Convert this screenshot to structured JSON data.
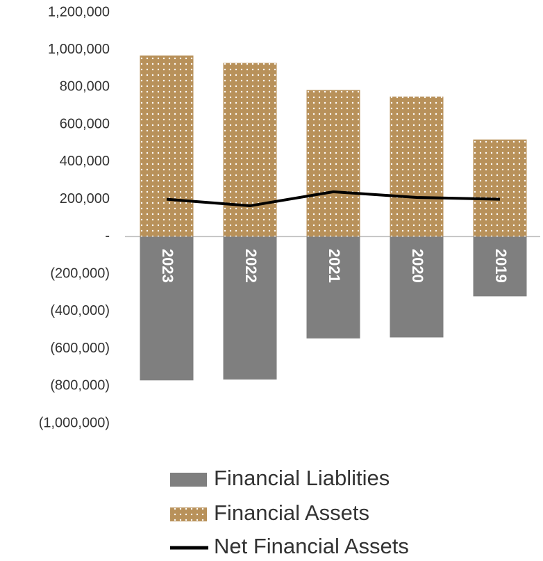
{
  "chart_data": {
    "type": "bar",
    "categories": [
      "2023",
      "2022",
      "2021",
      "2020",
      "2019"
    ],
    "series": [
      {
        "name": "Financial Liablities",
        "type": "bar",
        "color": "#7f7f7f",
        "values": [
          -770000,
          -765000,
          -545000,
          -540000,
          -320000
        ]
      },
      {
        "name": "Financial Assets",
        "type": "bar",
        "color": "#b8915a",
        "pattern": "dotted",
        "values": [
          970000,
          930000,
          785000,
          750000,
          520000
        ]
      },
      {
        "name": "Net Financial Assets",
        "type": "line",
        "color": "#000000",
        "values": [
          200000,
          165000,
          240000,
          210000,
          200000
        ]
      }
    ],
    "ylim": [
      -1000000,
      1200000
    ],
    "yticks": [
      {
        "value": -1000000,
        "label": "(1,000,000)"
      },
      {
        "value": -800000,
        "label": "(800,000)"
      },
      {
        "value": -600000,
        "label": "(600,000)"
      },
      {
        "value": -400000,
        "label": "(400,000)"
      },
      {
        "value": -200000,
        "label": "(200,000)"
      },
      {
        "value": 0,
        "label": "-"
      },
      {
        "value": 200000,
        "label": "200,000"
      },
      {
        "value": 400000,
        "label": "400,000"
      },
      {
        "value": 600000,
        "label": "600,000"
      },
      {
        "value": 800000,
        "label": "800,000"
      },
      {
        "value": 1000000,
        "label": "1,000,000"
      },
      {
        "value": 1200000,
        "label": "1,200,000"
      }
    ],
    "grid": false,
    "legend": "bottom"
  }
}
